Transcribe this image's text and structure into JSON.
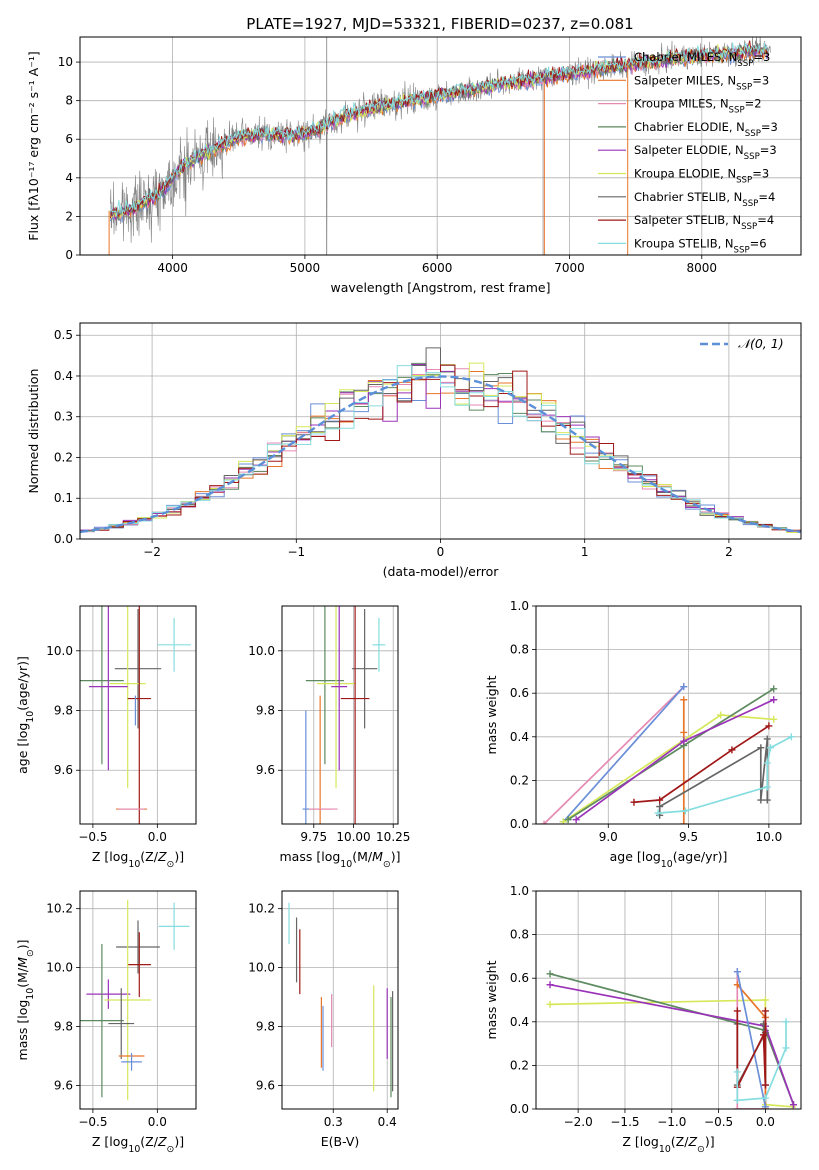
{
  "figure": {
    "title": "PLATE=1927, MJD=53321, FIBERID=0237, z=0.081"
  },
  "palette": {
    "Chabrier MILES": "#6a8fd8",
    "Salpeter MILES": "#e8762a",
    "Kroupa MILES": "#e68ab3",
    "Chabrier ELODIE": "#5d8a5e",
    "Salpeter ELODIE": "#9b33b8",
    "Kroupa ELODIE": "#d6e85a",
    "Chabrier STELIB": "#666666",
    "Salpeter STELIB": "#a01818",
    "Kroupa STELIB": "#86dde0",
    "data": "#808080",
    "normal": "#5b8fd8",
    "grid": "#b0b0b0"
  },
  "chart_data": [
    {
      "id": "spectrum",
      "type": "line",
      "xlabel": "wavelength [Angstrom, rest frame]",
      "ylabel": "Flux [fλ10⁻¹⁷ erg cm⁻² s⁻¹ A⁻¹]",
      "xlim": [
        3300,
        8750
      ],
      "ylim": [
        0,
        11.3
      ],
      "xticks": [
        4000,
        5000,
        6000,
        7000,
        8000
      ],
      "yticks": [
        0,
        2,
        4,
        6,
        8,
        10
      ],
      "legend_position": "top-right",
      "continuum": {
        "x": [
          3530,
          3700,
          3900,
          4000,
          4100,
          4300,
          4500,
          4700,
          4900,
          5100,
          5300,
          5500,
          5700,
          5900,
          6100,
          6300,
          6500,
          6700,
          6900,
          7100,
          7300,
          7500,
          7700,
          7900,
          8100,
          8300,
          8500
        ],
        "y": [
          2.1,
          2.4,
          3.2,
          4.0,
          4.7,
          5.5,
          6.1,
          6.3,
          6.2,
          6.5,
          7.2,
          7.6,
          7.9,
          8.1,
          8.4,
          8.6,
          8.9,
          9.1,
          9.3,
          9.5,
          9.7,
          9.9,
          10.1,
          10.3,
          10.4,
          10.5,
          10.6
        ]
      },
      "series": [
        {
          "name": "Chabrier MILES, N_SSP=3",
          "key": "Chabrier MILES"
        },
        {
          "name": "Salpeter MILES, N_SSP=3",
          "key": "Salpeter MILES"
        },
        {
          "name": "Kroupa MILES, N_SSP=2",
          "key": "Kroupa MILES"
        },
        {
          "name": "Chabrier ELODIE, N_SSP=3",
          "key": "Chabrier ELODIE"
        },
        {
          "name": "Salpeter ELODIE, N_SSP=3",
          "key": "Salpeter ELODIE"
        },
        {
          "name": "Kroupa ELODIE, N_SSP=3",
          "key": "Kroupa ELODIE"
        },
        {
          "name": "Chabrier STELIB, N_SSP=4",
          "key": "Chabrier STELIB"
        },
        {
          "name": "Salpeter STELIB, N_SSP=4",
          "key": "Salpeter STELIB"
        },
        {
          "name": "Kroupa STELIB, N_SSP=6",
          "key": "Kroupa STELIB"
        }
      ]
    },
    {
      "id": "residuals",
      "type": "histogram",
      "xlabel": "(data-model)/error",
      "ylabel": "Normed distribution",
      "xlim": [
        -2.5,
        2.5
      ],
      "ylim": [
        0,
        0.53
      ],
      "xticks": [
        -2,
        -1,
        0,
        1,
        2
      ],
      "yticks": [
        0.0,
        0.1,
        0.2,
        0.3,
        0.4,
        0.5
      ],
      "bin_width": 0.1,
      "legend": "𝒩(0, 1)",
      "legend_position": "top-right"
    },
    {
      "id": "z-age",
      "type": "errorbar",
      "xlabel": "Z [log10(Z/Z⊙)]",
      "ylabel": "age  [log10(age/yr)]",
      "xlim": [
        -0.6,
        0.3
      ],
      "ylim": [
        9.42,
        10.15
      ],
      "xticks": [
        -0.5,
        0.0
      ],
      "yticks": [
        9.6,
        9.8,
        10.0
      ],
      "points": [
        {
          "key": "Kroupa STELIB",
          "x": 0.13,
          "y": 10.02,
          "xerr": 0.13,
          "yerr": 0.09
        },
        {
          "key": "Chabrier STELIB",
          "x": -0.15,
          "y": 9.94,
          "xerr": 0.18,
          "yerr": 0.2
        },
        {
          "key": "Chabrier ELODIE",
          "x": -0.43,
          "y": 9.9,
          "xerr": 0.17,
          "yerr": 0.28
        },
        {
          "key": "Kroupa ELODIE",
          "x": -0.23,
          "y": 9.89,
          "xerr": 0.14,
          "yerr": 0.35
        },
        {
          "key": "Salpeter ELODIE",
          "x": -0.38,
          "y": 9.88,
          "xerr": 0.15,
          "yerr": 0.28
        },
        {
          "key": "Salpeter STELIB",
          "x": -0.14,
          "y": 9.84,
          "xerr": 0.09,
          "yerr": 0.45
        },
        {
          "key": "Chabrier MILES",
          "x": -0.17,
          "y": 9.8,
          "xerr": 0.0,
          "yerr": 0.05
        },
        {
          "key": "Salpeter MILES",
          "x": -0.2,
          "y": 9.47,
          "xerr": 0.12,
          "yerr": 0.0
        },
        {
          "key": "Kroupa MILES",
          "x": -0.2,
          "y": 9.47,
          "xerr": 0.1,
          "yerr": 0.0
        }
      ]
    },
    {
      "id": "mass-age",
      "type": "errorbar",
      "xlabel": "mass [log10(M/M⊙)]",
      "ylabel": "",
      "xlim": [
        9.55,
        10.28
      ],
      "ylim": [
        9.42,
        10.15
      ],
      "xticks": [
        9.75,
        10.0,
        10.25
      ],
      "yticks": [
        9.6,
        9.8,
        10.0
      ],
      "points": [
        {
          "key": "Kroupa STELIB",
          "x": 10.16,
          "y": 10.02,
          "xerr": 0.04,
          "yerr": 0.09
        },
        {
          "key": "Chabrier STELIB",
          "x": 10.07,
          "y": 9.94,
          "xerr": 0.08,
          "yerr": 0.2
        },
        {
          "key": "Chabrier ELODIE",
          "x": 9.82,
          "y": 9.9,
          "xerr": 0.12,
          "yerr": 0.28
        },
        {
          "key": "Kroupa ELODIE",
          "x": 9.89,
          "y": 9.89,
          "xerr": 0.12,
          "yerr": 0.35
        },
        {
          "key": "Salpeter ELODIE",
          "x": 9.91,
          "y": 9.88,
          "xerr": 0.05,
          "yerr": 0.28
        },
        {
          "key": "Salpeter STELIB",
          "x": 10.01,
          "y": 9.84,
          "xerr": 0.09,
          "yerr": 0.45
        },
        {
          "key": "Chabrier MILES",
          "x": 9.7,
          "y": 9.47,
          "xerr": 0.02,
          "yerr": 0.33
        },
        {
          "key": "Salpeter MILES",
          "x": 9.79,
          "y": 9.47,
          "xerr": 0.07,
          "yerr": 0.38
        },
        {
          "key": "Kroupa MILES",
          "x": 9.81,
          "y": 9.47,
          "xerr": 0.09,
          "yerr": 0.0
        }
      ]
    },
    {
      "id": "weight-age",
      "type": "line",
      "xlabel": "age  [log10(age/yr)]",
      "ylabel": "mass weight",
      "xlim": [
        8.55,
        10.2
      ],
      "ylim": [
        0,
        1
      ],
      "xticks": [
        9.0,
        9.5,
        10.0
      ],
      "yticks": [
        0.0,
        0.2,
        0.4,
        0.6,
        0.8,
        1.0
      ],
      "series": [
        {
          "key": "Kroupa MILES",
          "x": [
            8.6,
            9.47
          ],
          "y": [
            0.0,
            0.63
          ]
        },
        {
          "key": "Chabrier MILES",
          "x": [
            8.72,
            9.47
          ],
          "y": [
            0.01,
            0.63
          ]
        },
        {
          "key": "Salpeter MILES",
          "x": [
            9.47,
            9.47,
            9.47
          ],
          "y": [
            0.57,
            0.42,
            0.0
          ]
        },
        {
          "key": "Kroupa ELODIE",
          "x": [
            8.72,
            9.7,
            10.03
          ],
          "y": [
            0.01,
            0.5,
            0.48
          ]
        },
        {
          "key": "Chabrier ELODIE",
          "x": [
            8.75,
            9.47,
            10.03
          ],
          "y": [
            0.02,
            0.36,
            0.62
          ]
        },
        {
          "key": "Salpeter ELODIE",
          "x": [
            8.8,
            9.47,
            10.03
          ],
          "y": [
            0.02,
            0.38,
            0.57
          ]
        },
        {
          "key": "Chabrier STELIB",
          "x": [
            9.32,
            9.32,
            9.95,
            9.95,
            9.99,
            9.99
          ],
          "y": [
            0.04,
            0.08,
            0.35,
            0.11,
            0.39,
            0.11
          ]
        },
        {
          "key": "Salpeter STELIB",
          "x": [
            9.16,
            9.32,
            9.77,
            10.0
          ],
          "y": [
            0.1,
            0.11,
            0.34,
            0.45
          ]
        },
        {
          "key": "Kroupa STELIB",
          "x": [
            9.31,
            9.48,
            9.99,
            9.99,
            10.01,
            10.14
          ],
          "y": [
            0.05,
            0.06,
            0.17,
            0.28,
            0.35,
            0.4
          ]
        }
      ]
    },
    {
      "id": "z-mass",
      "type": "errorbar",
      "xlabel": "Z [log10(Z/Z⊙)]",
      "ylabel": "mass [log10(M/M⊙)]",
      "xlim": [
        -0.6,
        0.3
      ],
      "ylim": [
        9.52,
        10.26
      ],
      "xticks": [
        -0.5,
        0.0
      ],
      "yticks": [
        9.6,
        9.8,
        10.0,
        10.2
      ],
      "points": [
        {
          "key": "Kroupa STELIB",
          "x": 0.13,
          "y": 10.14,
          "xerr": 0.12,
          "yerr": 0.08
        },
        {
          "key": "Chabrier STELIB",
          "x": -0.15,
          "y": 10.07,
          "xerr": 0.17,
          "yerr": 0.09
        },
        {
          "key": "Salpeter STELIB",
          "x": -0.14,
          "y": 10.01,
          "xerr": 0.09,
          "yerr": 0.11
        },
        {
          "key": "Salpeter ELODIE",
          "x": -0.38,
          "y": 9.91,
          "xerr": 0.17,
          "yerr": 0.05
        },
        {
          "key": "Kroupa ELODIE",
          "x": -0.23,
          "y": 9.89,
          "xerr": 0.18,
          "yerr": 0.34
        },
        {
          "key": "Chabrier ELODIE",
          "x": -0.43,
          "y": 9.82,
          "xerr": 0.17,
          "yerr": 0.26
        },
        {
          "key": "Chabrier STELIB",
          "x": -0.28,
          "y": 9.81,
          "xerr": 0.1,
          "yerr": 0.12
        },
        {
          "key": "Salpeter MILES",
          "x": -0.2,
          "y": 9.7,
          "xerr": 0.1,
          "yerr": 0.0
        },
        {
          "key": "Chabrier MILES",
          "x": -0.2,
          "y": 9.68,
          "xerr": 0.08,
          "yerr": 0.03
        }
      ]
    },
    {
      "id": "ebv-mass",
      "type": "errorbar",
      "xlabel": "E(B-V)",
      "ylabel": "",
      "xlim": [
        0.205,
        0.42
      ],
      "ylim": [
        9.52,
        10.26
      ],
      "xticks": [
        0.3,
        0.4
      ],
      "yticks": [
        9.6,
        9.8,
        10.0,
        10.2
      ],
      "points": [
        {
          "key": "Kroupa STELIB",
          "x": 0.218,
          "y": 10.15,
          "xerr": 0.0,
          "yerr": 0.07
        },
        {
          "key": "Chabrier STELIB",
          "x": 0.232,
          "y": 10.06,
          "xerr": 0.0,
          "yerr": 0.11
        },
        {
          "key": "Salpeter STELIB",
          "x": 0.238,
          "y": 10.02,
          "xerr": 0.0,
          "yerr": 0.11
        },
        {
          "key": "Kroupa MILES",
          "x": 0.297,
          "y": 9.82,
          "xerr": 0.0,
          "yerr": 0.09
        },
        {
          "key": "Salpeter MILES",
          "x": 0.278,
          "y": 9.78,
          "xerr": 0.0,
          "yerr": 0.12
        },
        {
          "key": "Chabrier MILES",
          "x": 0.281,
          "y": 9.76,
          "xerr": 0.0,
          "yerr": 0.11
        },
        {
          "key": "Kroupa ELODIE",
          "x": 0.375,
          "y": 9.76,
          "xerr": 0.0,
          "yerr": 0.18
        },
        {
          "key": "Salpeter ELODIE",
          "x": 0.4,
          "y": 9.81,
          "xerr": 0.0,
          "yerr": 0.12
        },
        {
          "key": "Chabrier ELODIE",
          "x": 0.407,
          "y": 9.73,
          "xerr": 0.0,
          "yerr": 0.17
        },
        {
          "key": "Chabrier STELIB",
          "x": 0.41,
          "y": 9.75,
          "xerr": 0.0,
          "yerr": 0.17
        }
      ]
    },
    {
      "id": "weight-z",
      "type": "line",
      "xlabel": "Z [log10(Z/Z⊙)]",
      "ylabel": "mass weight",
      "xlim": [
        -2.45,
        0.38
      ],
      "ylim": [
        0,
        1
      ],
      "xticks": [
        -2.0,
        -1.5,
        -1.0,
        -0.5,
        0.0
      ],
      "yticks": [
        0.0,
        0.2,
        0.4,
        0.6,
        0.8,
        1.0
      ],
      "series": [
        {
          "key": "Kroupa ELODIE",
          "x": [
            -2.3,
            0.0,
            0.0,
            0.29
          ],
          "y": [
            0.48,
            0.5,
            0.02,
            0.01
          ]
        },
        {
          "key": "Chabrier ELODIE",
          "x": [
            -2.3,
            0.0,
            0.3
          ],
          "y": [
            0.62,
            0.36,
            0.02
          ]
        },
        {
          "key": "Salpeter ELODIE",
          "x": [
            -2.3,
            0.0,
            0.3
          ],
          "y": [
            0.57,
            0.38,
            0.02
          ]
        },
        {
          "key": "Kroupa MILES",
          "x": [
            -0.3,
            -0.3,
            0.0,
            0.0
          ],
          "y": [
            0.63,
            0.0,
            0.0,
            0.42
          ]
        },
        {
          "key": "Salpeter MILES",
          "x": [
            -0.3,
            0.0,
            0.0
          ],
          "y": [
            0.57,
            0.42,
            0.0
          ]
        },
        {
          "key": "Chabrier MILES",
          "x": [
            -0.3,
            0.0
          ],
          "y": [
            0.63,
            0.01
          ]
        },
        {
          "key": "Chabrier STELIB",
          "x": [
            -0.3,
            -0.3,
            0.0,
            0.0,
            -0.02
          ],
          "y": [
            0.39,
            0.11,
            0.35,
            0.11,
            0.39
          ]
        },
        {
          "key": "Salpeter STELIB",
          "x": [
            -0.3,
            -0.3,
            -0.02,
            0.0,
            0.0
          ],
          "y": [
            0.45,
            0.1,
            0.34,
            0.11,
            0.45
          ]
        },
        {
          "key": "Kroupa STELIB",
          "x": [
            -0.3,
            -0.3,
            0.0,
            0.22,
            0.22
          ],
          "y": [
            0.17,
            0.04,
            0.05,
            0.28,
            0.4
          ]
        }
      ]
    }
  ]
}
